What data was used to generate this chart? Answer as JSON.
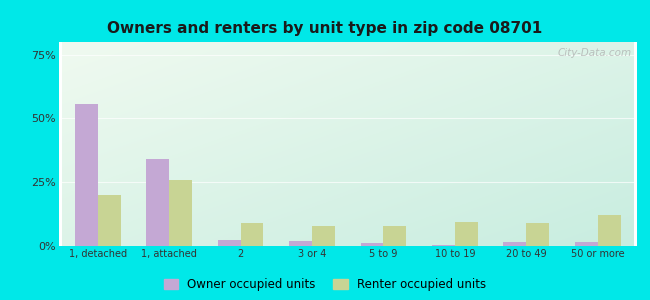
{
  "title": "Owners and renters by unit type in zip code 08701",
  "categories": [
    "1, detached",
    "1, attached",
    "2",
    "3 or 4",
    "5 to 9",
    "10 to 19",
    "20 to 49",
    "50 or more"
  ],
  "owner_values": [
    55.5,
    34.0,
    2.5,
    2.0,
    1.0,
    0.5,
    1.5,
    1.5
  ],
  "renter_values": [
    20.0,
    26.0,
    9.0,
    8.0,
    8.0,
    9.5,
    9.0,
    12.0
  ],
  "owner_color": "#c4a8d4",
  "renter_color": "#c8d494",
  "bg_color_topleft": "#f0faf0",
  "bg_color_bottomright": "#c8ede0",
  "outer_bg": "#00e8e8",
  "yticks": [
    0,
    25,
    50,
    75
  ],
  "ytick_labels": [
    "0%",
    "25%",
    "50%",
    "75%"
  ],
  "ylim": [
    0,
    80
  ],
  "legend_owner": "Owner occupied units",
  "legend_renter": "Renter occupied units",
  "bar_width": 0.32,
  "watermark": "City-Data.com"
}
